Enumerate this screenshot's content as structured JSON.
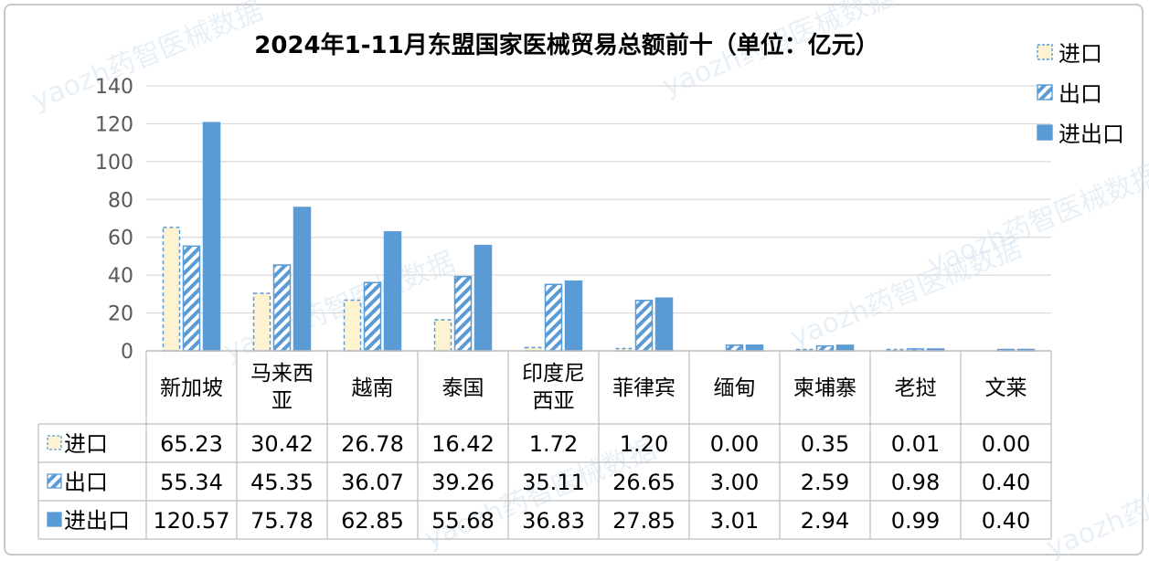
{
  "chart_data": {
    "type": "bar",
    "title": "2024年1-11月东盟国家医械贸易总额前十（单位：亿元）",
    "categories": [
      "新加坡",
      "马来西亚",
      "越南",
      "泰国",
      "印度尼西亚",
      "菲律宾",
      "缅甸",
      "柬埔寨",
      "老挝",
      "文莱"
    ],
    "category_lines": [
      [
        "新加坡"
      ],
      [
        "马来西",
        "亚"
      ],
      [
        "越南"
      ],
      [
        "泰国"
      ],
      [
        "印度尼",
        "西亚"
      ],
      [
        "菲律宾"
      ],
      [
        "缅甸"
      ],
      [
        "柬埔寨"
      ],
      [
        "老挝"
      ],
      [
        "文莱"
      ]
    ],
    "series": [
      {
        "name": "进口",
        "values": [
          65.23,
          30.42,
          26.78,
          16.42,
          1.72,
          1.2,
          0.0,
          0.35,
          0.01,
          0.0
        ],
        "labels": [
          "65.23",
          "30.42",
          "26.78",
          "16.42",
          "1.72",
          "1.20",
          "0.00",
          "0.35",
          "0.01",
          "0.00"
        ]
      },
      {
        "name": "出口",
        "values": [
          55.34,
          45.35,
          36.07,
          39.26,
          35.11,
          26.65,
          3.0,
          2.59,
          0.98,
          0.4
        ],
        "labels": [
          "55.34",
          "45.35",
          "36.07",
          "39.26",
          "35.11",
          "26.65",
          "3.00",
          "2.59",
          "0.98",
          "0.40"
        ]
      },
      {
        "name": "进出口",
        "values": [
          120.57,
          75.78,
          62.85,
          55.68,
          36.83,
          27.85,
          3.01,
          2.94,
          0.99,
          0.4
        ],
        "labels": [
          "120.57",
          "75.78",
          "62.85",
          "55.68",
          "36.83",
          "27.85",
          "3.01",
          "2.94",
          "0.99",
          "0.40"
        ]
      }
    ],
    "ylim": [
      0,
      140
    ],
    "yticks": [
      "0",
      "20",
      "40",
      "60",
      "80",
      "100",
      "120",
      "140"
    ],
    "grid": true,
    "legend_position": "top-right",
    "data_table": true
  },
  "colors": {
    "import_fill": "#fdf3d0",
    "import_stroke": "#5b9bd5",
    "export_stroke": "#5b9bd5",
    "export_hatch": "#5b9bd5",
    "total_fill": "#5b9bd5",
    "grid": "#d9d9d9",
    "table_border": "#bfbfbf"
  },
  "watermark": "yaozh药智医械数据"
}
